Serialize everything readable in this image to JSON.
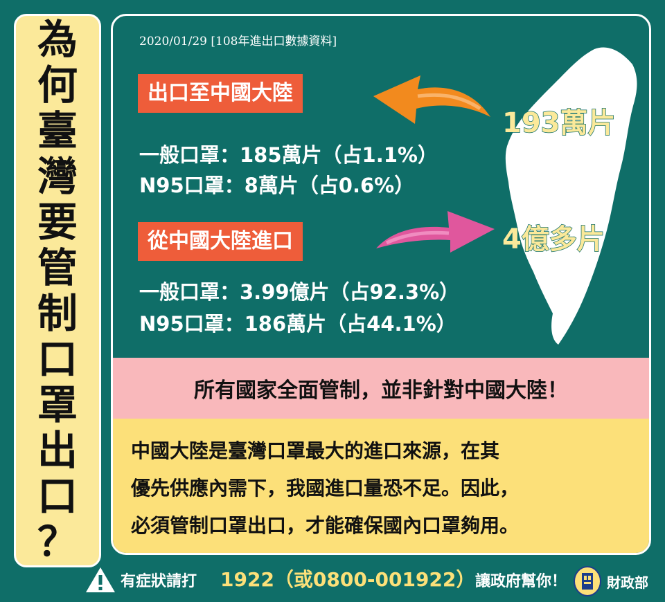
{
  "title_chars": [
    "為",
    "何",
    "臺",
    "灣",
    "要",
    "管",
    "制",
    "口",
    "罩",
    "出",
    "口",
    "？"
  ],
  "date_line": "2020/01/29 [108年進出口數據資料]",
  "export": {
    "tag": "出口至中國大陸",
    "line1": "一般口罩：185萬片（占1.1%）",
    "line2": "N95口罩：8萬片（占0.6%）",
    "amount": "193萬片"
  },
  "import": {
    "tag": "從中國大陸進口",
    "line1": "一般口罩：3.99億片（占92.3%）",
    "line2": "N95口罩：186萬片（占44.1%）",
    "amount": "4億多片"
  },
  "pink_statement": "所有國家全面管制，並非針對中國大陸！",
  "explanation": [
    "中國大陸是臺灣口罩最大的進口來源，在其",
    "優先供應內需下，我國進口量恐不足。因此，",
    "必須管制口罩出口，才能確保國內口罩夠用。"
  ],
  "footer": {
    "prefix": "有症狀請打",
    "hotline": "1922（或0800-001922）",
    "suffix": "讓政府幫你！",
    "ministry": "財政部"
  },
  "colors": {
    "background": "#0f6e68",
    "title_bg": "#fbe99a",
    "tag_bg": "#ee5d3a",
    "export_arrow": "#f28a1e",
    "import_arrow": "#e0579d",
    "pink_bar": "#f9b8bb",
    "yellow_box": "#fce079"
  },
  "icons": [
    "warning-icon",
    "ministry-seal-icon",
    "taiwan-map"
  ]
}
